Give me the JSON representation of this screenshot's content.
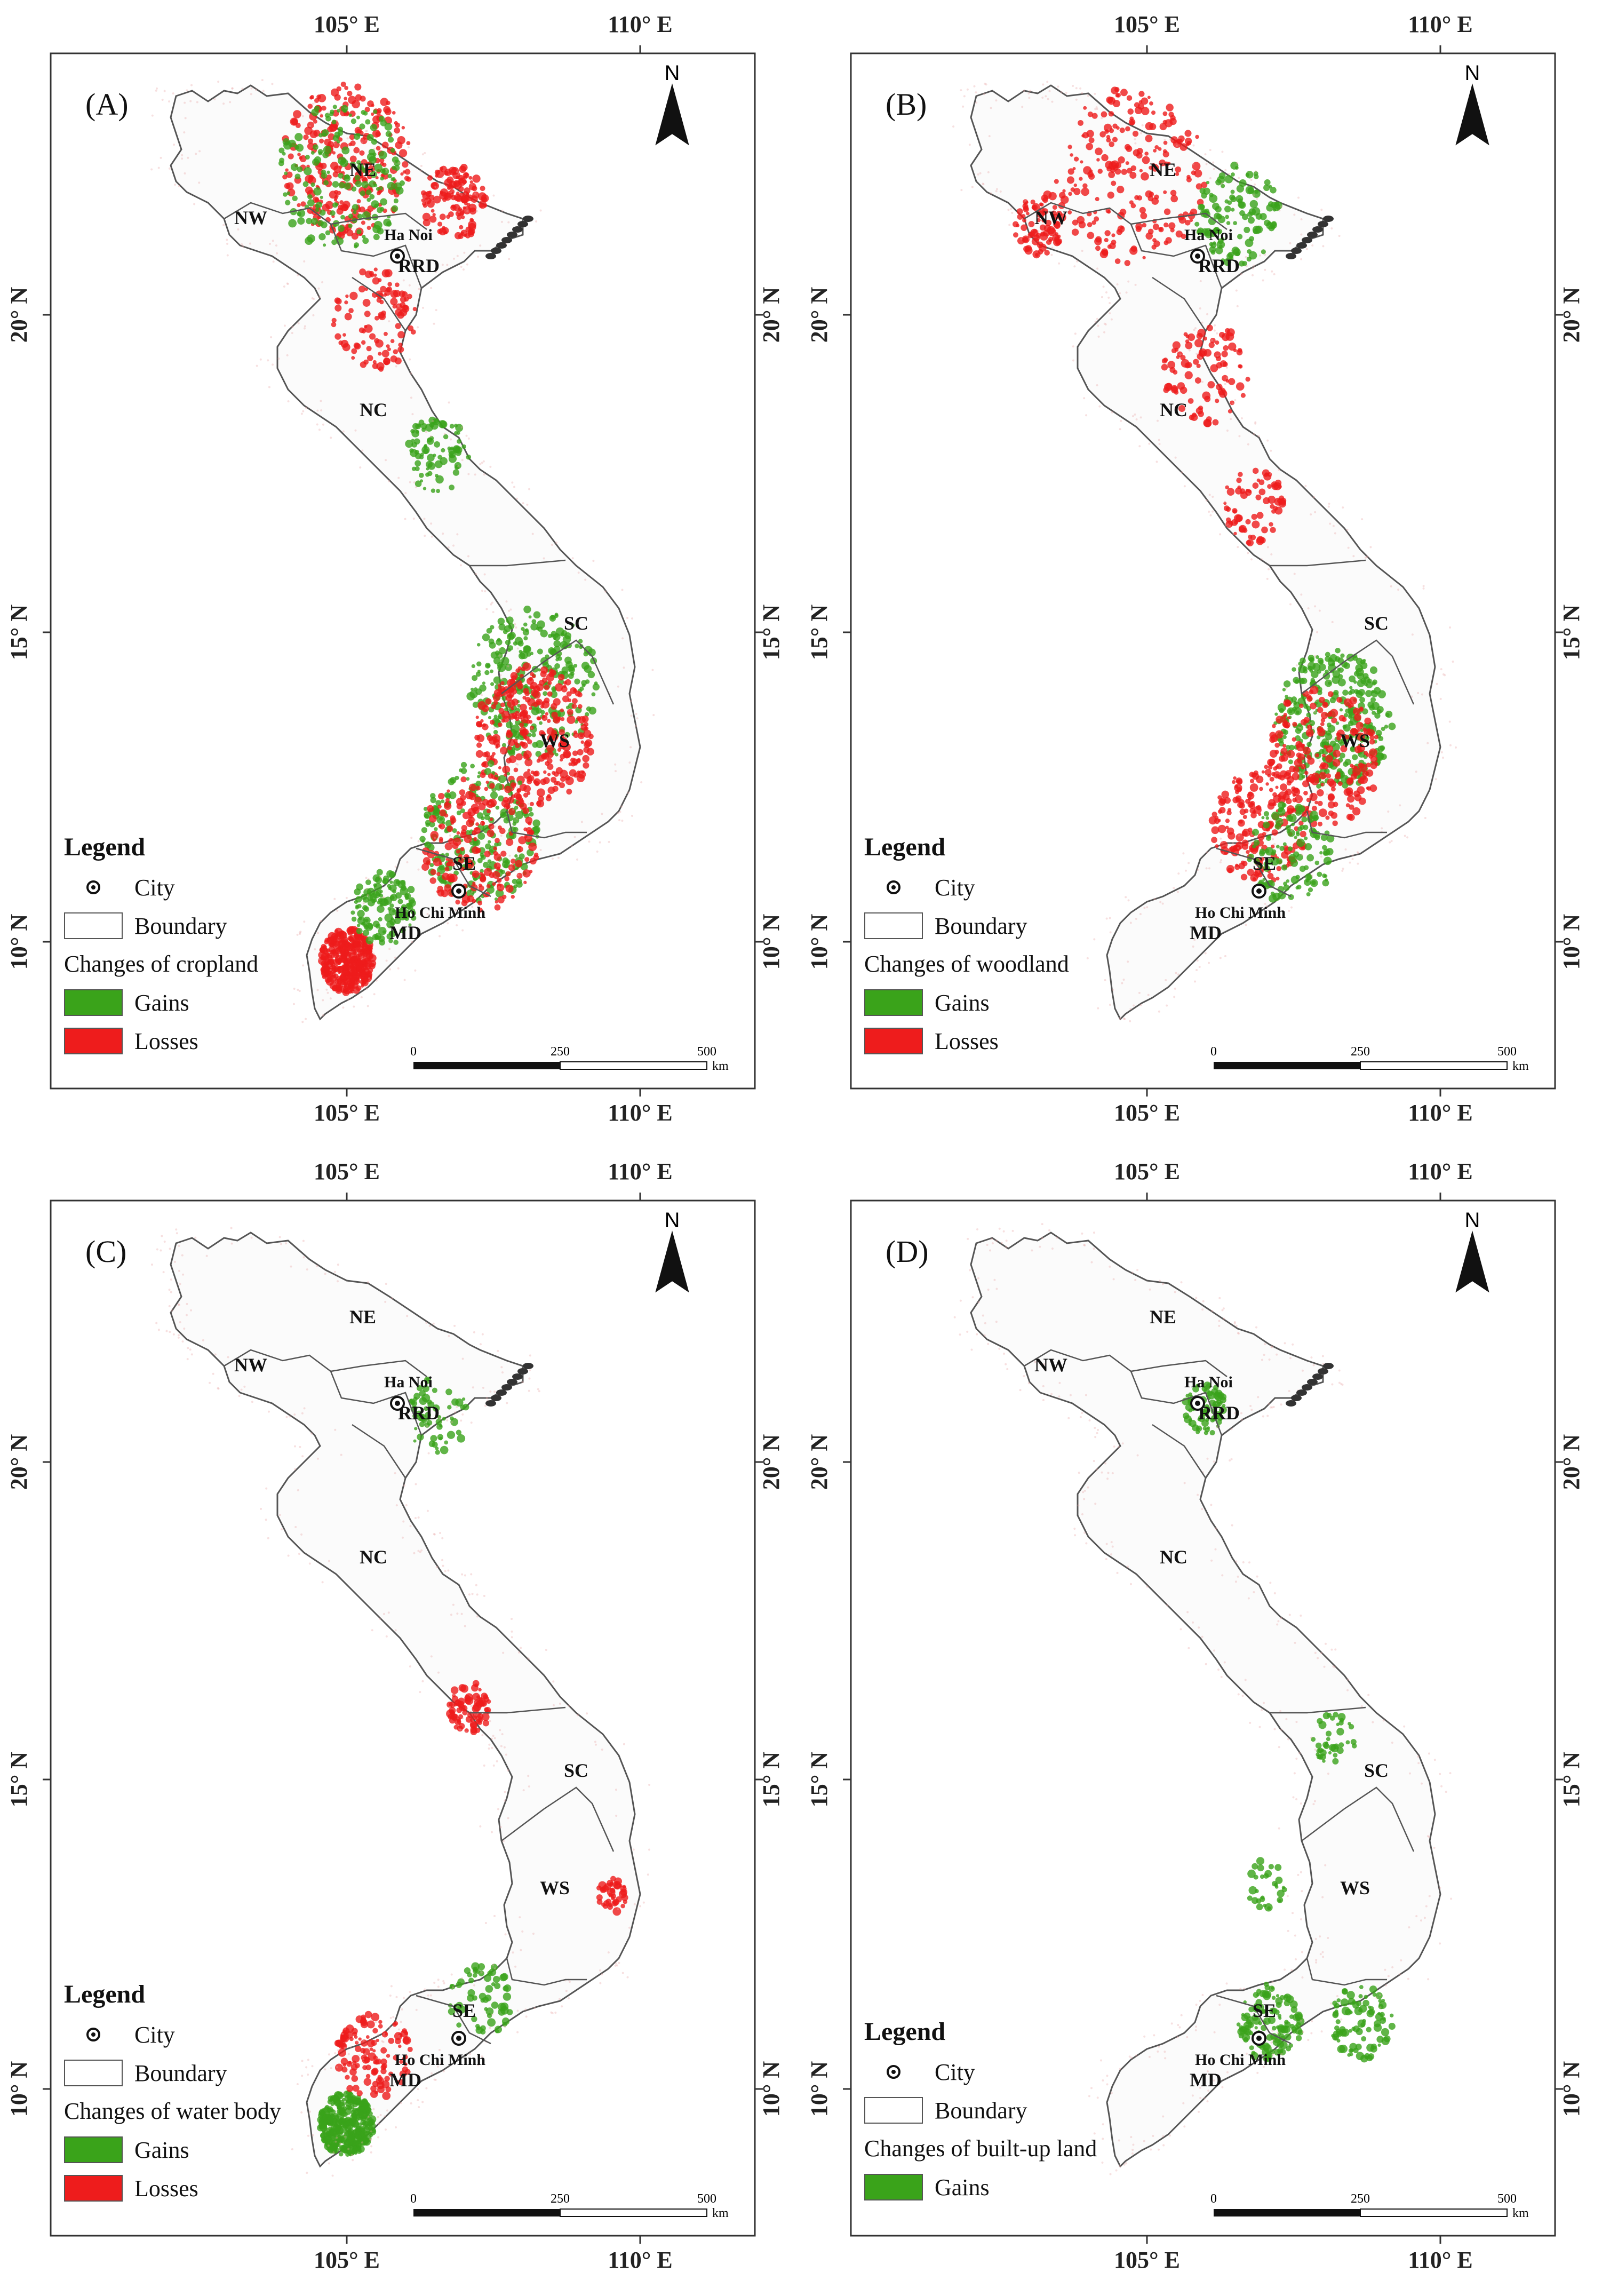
{
  "panels": [
    {
      "id": "A",
      "label": "(A)",
      "legend_title": "Legend",
      "city_label": "City",
      "boundary_label": "Boundary",
      "changes_label": "Changes of cropland",
      "gains_label": "Gains",
      "losses_label": "Losses",
      "has_losses": true,
      "pattern": "cropland"
    },
    {
      "id": "B",
      "label": "(B)",
      "legend_title": "Legend",
      "city_label": "City",
      "boundary_label": "Boundary",
      "changes_label": "Changes of woodland",
      "gains_label": "Gains",
      "losses_label": "Losses",
      "has_losses": true,
      "pattern": "woodland"
    },
    {
      "id": "C",
      "label": "(C)",
      "legend_title": "Legend",
      "city_label": "City",
      "boundary_label": "Boundary",
      "changes_label": "Changes of water body",
      "gains_label": "Gains",
      "losses_label": "Losses",
      "has_losses": true,
      "pattern": "water"
    },
    {
      "id": "D",
      "label": "(D)",
      "legend_title": "Legend",
      "city_label": "City",
      "boundary_label": "Boundary",
      "changes_label": "Changes of built-up land",
      "gains_label": "Gains",
      "losses_label": "",
      "has_losses": false,
      "pattern": "builtup"
    }
  ],
  "axes": {
    "lon_ticks": [
      "105° E",
      "110° E"
    ],
    "lat_ticks": [
      "20° N",
      "15° N",
      "10° N"
    ]
  },
  "regions": [
    "NE",
    "NW",
    "RRD",
    "NC",
    "SC",
    "WS",
    "SE",
    "MD"
  ],
  "cities": [
    "Ha Noi",
    "Ho Chi Minh"
  ],
  "north_label": "N",
  "scale": {
    "ticks": [
      "0",
      "250",
      "500"
    ],
    "unit": "km"
  },
  "colors": {
    "gains": "#3aa31a",
    "losses": "#ee1c1c",
    "boundary": "#555555"
  }
}
